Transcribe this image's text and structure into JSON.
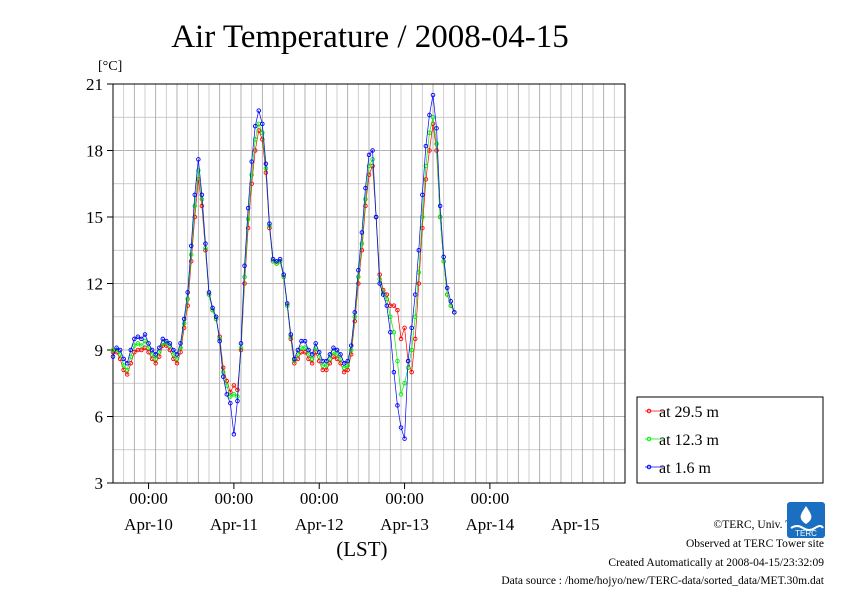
{
  "chart_data": {
    "type": "line",
    "title": "Air Temperature / 2008-04-15",
    "ylabel": "[°C]",
    "xlabel": "(LST)",
    "ylim": [
      3,
      21
    ],
    "yticks": [
      3,
      6,
      9,
      12,
      15,
      18,
      21
    ],
    "xlim_hours": [
      0,
      144
    ],
    "time_ticks": [
      "00:00",
      "00:00",
      "00:00",
      "00:00",
      "00:00"
    ],
    "date_labels": [
      "Apr-10",
      "Apr-11",
      "Apr-12",
      "Apr-13",
      "Apr-14",
      "Apr-15"
    ],
    "x_unit": "hours since Apr-09 14:00 LST",
    "grid": true,
    "legend_position": "bottom-right, outside plot",
    "series": [
      {
        "name": "at 29.5 m",
        "color": "#ff0000",
        "points": [
          [
            0,
            8.9
          ],
          [
            1,
            8.9
          ],
          [
            2,
            8.6
          ],
          [
            3,
            8.1
          ],
          [
            4,
            7.9
          ],
          [
            5,
            8.4
          ],
          [
            6,
            8.9
          ],
          [
            7,
            9.0
          ],
          [
            8,
            9.0
          ],
          [
            9,
            9.1
          ],
          [
            10,
            8.9
          ],
          [
            11,
            8.6
          ],
          [
            12,
            8.4
          ],
          [
            13,
            8.7
          ],
          [
            14,
            9.2
          ],
          [
            15,
            9.2
          ],
          [
            16,
            9.0
          ],
          [
            17,
            8.6
          ],
          [
            18,
            8.4
          ],
          [
            19,
            8.9
          ],
          [
            20,
            10.0
          ],
          [
            21,
            11.0
          ],
          [
            22,
            13.0
          ],
          [
            23,
            15.0
          ],
          [
            24,
            16.7
          ],
          [
            25,
            15.5
          ],
          [
            26,
            13.5
          ],
          [
            27,
            11.5
          ],
          [
            28,
            10.8
          ],
          [
            29,
            10.4
          ],
          [
            30,
            9.6
          ],
          [
            31,
            8.2
          ],
          [
            32,
            7.6
          ],
          [
            33,
            7.1
          ],
          [
            34,
            7.4
          ],
          [
            35,
            7.2
          ],
          [
            36,
            9.0
          ],
          [
            37,
            12.0
          ],
          [
            38,
            14.5
          ],
          [
            39,
            16.5
          ],
          [
            40,
            18.0
          ],
          [
            41,
            18.9
          ],
          [
            42,
            18.5
          ],
          [
            43,
            17.0
          ],
          [
            44,
            14.5
          ],
          [
            45,
            13.0
          ],
          [
            46,
            12.9
          ],
          [
            47,
            13.0
          ],
          [
            48,
            12.3
          ],
          [
            49,
            11.0
          ],
          [
            50,
            9.5
          ],
          [
            51,
            8.4
          ],
          [
            52,
            8.6
          ],
          [
            53,
            8.9
          ],
          [
            54,
            8.9
          ],
          [
            55,
            8.6
          ],
          [
            56,
            8.4
          ],
          [
            57,
            8.9
          ],
          [
            58,
            8.5
          ],
          [
            59,
            8.1
          ],
          [
            60,
            8.1
          ],
          [
            61,
            8.4
          ],
          [
            62,
            8.7
          ],
          [
            63,
            8.6
          ],
          [
            64,
            8.4
          ],
          [
            65,
            8.0
          ],
          [
            66,
            8.1
          ],
          [
            67,
            8.8
          ],
          [
            68,
            10.3
          ],
          [
            69,
            12.0
          ],
          [
            70,
            13.5
          ],
          [
            71,
            15.5
          ],
          [
            72,
            16.9
          ],
          [
            73,
            17.3
          ],
          [
            74,
            15.0
          ],
          [
            75,
            12.4
          ],
          [
            76,
            11.7
          ],
          [
            77,
            11.5
          ],
          [
            78,
            11.0
          ],
          [
            79,
            11.0
          ],
          [
            80,
            10.8
          ],
          [
            81,
            9.5
          ],
          [
            82,
            10.0
          ],
          [
            83,
            8.5
          ],
          [
            84,
            8.0
          ],
          [
            85,
            9.5
          ],
          [
            86,
            12.0
          ],
          [
            87,
            14.5
          ],
          [
            88,
            16.7
          ],
          [
            89,
            18.0
          ],
          [
            90,
            19.2
          ],
          [
            91,
            18.0
          ],
          [
            92,
            15.0
          ],
          [
            93,
            13.0
          ],
          [
            94,
            11.5
          ],
          [
            95,
            11.0
          ],
          [
            96,
            10.7
          ]
        ]
      },
      {
        "name": "at 12.3 m",
        "color": "#00ee00",
        "points": [
          [
            0,
            9.0
          ],
          [
            1,
            9.0
          ],
          [
            2,
            8.8
          ],
          [
            3,
            8.3
          ],
          [
            4,
            8.1
          ],
          [
            5,
            8.7
          ],
          [
            6,
            9.2
          ],
          [
            7,
            9.3
          ],
          [
            8,
            9.2
          ],
          [
            9,
            9.4
          ],
          [
            10,
            9.1
          ],
          [
            11,
            8.8
          ],
          [
            12,
            8.6
          ],
          [
            13,
            8.9
          ],
          [
            14,
            9.3
          ],
          [
            15,
            9.3
          ],
          [
            16,
            9.2
          ],
          [
            17,
            8.8
          ],
          [
            18,
            8.6
          ],
          [
            19,
            9.1
          ],
          [
            20,
            10.2
          ],
          [
            21,
            11.3
          ],
          [
            22,
            13.3
          ],
          [
            23,
            15.5
          ],
          [
            24,
            17.1
          ],
          [
            25,
            15.8
          ],
          [
            26,
            13.6
          ],
          [
            27,
            11.5
          ],
          [
            28,
            10.8
          ],
          [
            29,
            10.4
          ],
          [
            30,
            9.5
          ],
          [
            31,
            8.0
          ],
          [
            32,
            7.4
          ],
          [
            33,
            6.9
          ],
          [
            34,
            7.0
          ],
          [
            35,
            6.9
          ],
          [
            36,
            9.1
          ],
          [
            37,
            12.3
          ],
          [
            38,
            14.9
          ],
          [
            39,
            16.9
          ],
          [
            40,
            18.5
          ],
          [
            41,
            19.2
          ],
          [
            42,
            18.8
          ],
          [
            43,
            17.2
          ],
          [
            44,
            14.6
          ],
          [
            45,
            13.0
          ],
          [
            46,
            12.9
          ],
          [
            47,
            13.0
          ],
          [
            48,
            12.3
          ],
          [
            49,
            11.0
          ],
          [
            50,
            9.6
          ],
          [
            51,
            8.5
          ],
          [
            52,
            8.8
          ],
          [
            53,
            9.1
          ],
          [
            54,
            9.1
          ],
          [
            55,
            8.8
          ],
          [
            56,
            8.6
          ],
          [
            57,
            9.1
          ],
          [
            58,
            8.7
          ],
          [
            59,
            8.3
          ],
          [
            60,
            8.3
          ],
          [
            61,
            8.6
          ],
          [
            62,
            8.9
          ],
          [
            63,
            8.8
          ],
          [
            64,
            8.6
          ],
          [
            65,
            8.2
          ],
          [
            66,
            8.3
          ],
          [
            67,
            9.0
          ],
          [
            68,
            10.5
          ],
          [
            69,
            12.3
          ],
          [
            70,
            13.8
          ],
          [
            71,
            15.8
          ],
          [
            72,
            17.3
          ],
          [
            73,
            17.6
          ],
          [
            74,
            15.0
          ],
          [
            75,
            12.2
          ],
          [
            76,
            11.6
          ],
          [
            77,
            11.3
          ],
          [
            78,
            10.5
          ],
          [
            79,
            9.8
          ],
          [
            80,
            8.5
          ],
          [
            81,
            7.0
          ],
          [
            82,
            7.5
          ],
          [
            83,
            8.2
          ],
          [
            84,
            9.0
          ],
          [
            85,
            10.5
          ],
          [
            86,
            12.5
          ],
          [
            87,
            15.0
          ],
          [
            88,
            17.3
          ],
          [
            89,
            18.8
          ],
          [
            90,
            19.5
          ],
          [
            91,
            18.3
          ],
          [
            92,
            15.0
          ],
          [
            93,
            13.0
          ],
          [
            94,
            11.5
          ],
          [
            95,
            11.0
          ],
          [
            96,
            10.7
          ]
        ]
      },
      {
        "name": "at 1.6 m",
        "color": "#0000ff",
        "points": [
          [
            0,
            8.7
          ],
          [
            1,
            9.1
          ],
          [
            2,
            9.0
          ],
          [
            3,
            8.6
          ],
          [
            4,
            8.4
          ],
          [
            5,
            9.0
          ],
          [
            6,
            9.5
          ],
          [
            7,
            9.6
          ],
          [
            8,
            9.5
          ],
          [
            9,
            9.7
          ],
          [
            10,
            9.3
          ],
          [
            11,
            9.0
          ],
          [
            12,
            8.8
          ],
          [
            13,
            9.1
          ],
          [
            14,
            9.5
          ],
          [
            15,
            9.4
          ],
          [
            16,
            9.3
          ],
          [
            17,
            9.0
          ],
          [
            18,
            8.8
          ],
          [
            19,
            9.3
          ],
          [
            20,
            10.4
          ],
          [
            21,
            11.6
          ],
          [
            22,
            13.7
          ],
          [
            23,
            16.0
          ],
          [
            24,
            17.6
          ],
          [
            25,
            16.0
          ],
          [
            26,
            13.8
          ],
          [
            27,
            11.6
          ],
          [
            28,
            10.9
          ],
          [
            29,
            10.5
          ],
          [
            30,
            9.4
          ],
          [
            31,
            7.8
          ],
          [
            32,
            7.0
          ],
          [
            33,
            6.6
          ],
          [
            34,
            5.2
          ],
          [
            35,
            6.7
          ],
          [
            36,
            9.3
          ],
          [
            37,
            12.8
          ],
          [
            38,
            15.4
          ],
          [
            39,
            17.5
          ],
          [
            40,
            19.1
          ],
          [
            41,
            19.8
          ],
          [
            42,
            19.2
          ],
          [
            43,
            17.4
          ],
          [
            44,
            14.7
          ],
          [
            45,
            13.1
          ],
          [
            46,
            13.0
          ],
          [
            47,
            13.1
          ],
          [
            48,
            12.4
          ],
          [
            49,
            11.1
          ],
          [
            50,
            9.7
          ],
          [
            51,
            8.6
          ],
          [
            52,
            9.0
          ],
          [
            53,
            9.4
          ],
          [
            54,
            9.4
          ],
          [
            55,
            9.0
          ],
          [
            56,
            8.8
          ],
          [
            57,
            9.3
          ],
          [
            58,
            8.9
          ],
          [
            59,
            8.5
          ],
          [
            60,
            8.5
          ],
          [
            61,
            8.8
          ],
          [
            62,
            9.1
          ],
          [
            63,
            9.0
          ],
          [
            64,
            8.8
          ],
          [
            65,
            8.4
          ],
          [
            66,
            8.5
          ],
          [
            67,
            9.2
          ],
          [
            68,
            10.7
          ],
          [
            69,
            12.6
          ],
          [
            70,
            14.3
          ],
          [
            71,
            16.3
          ],
          [
            72,
            17.8
          ],
          [
            73,
            18.0
          ],
          [
            74,
            15.0
          ],
          [
            75,
            12.0
          ],
          [
            76,
            11.5
          ],
          [
            77,
            11.0
          ],
          [
            78,
            9.8
          ],
          [
            79,
            8.0
          ],
          [
            80,
            6.5
          ],
          [
            81,
            5.5
          ],
          [
            82,
            5.0
          ],
          [
            83,
            8.5
          ],
          [
            84,
            10.0
          ],
          [
            85,
            11.5
          ],
          [
            86,
            13.5
          ],
          [
            87,
            16.0
          ],
          [
            88,
            18.2
          ],
          [
            89,
            19.6
          ],
          [
            90,
            20.5
          ],
          [
            91,
            19.0
          ],
          [
            92,
            15.5
          ],
          [
            93,
            13.2
          ],
          [
            94,
            11.8
          ],
          [
            95,
            11.2
          ],
          [
            96,
            10.7
          ]
        ]
      }
    ]
  },
  "footer": {
    "copyright": "©TERC, Univ. Tsukuba",
    "observed": "Observed at TERC Tower site",
    "created": "Created Automatically at 2008-04-15/23:32:09",
    "source": "Data source : /home/hojyo/new/TERC-data/sorted_data/MET.30m.dat",
    "logo_text": "TERC"
  }
}
